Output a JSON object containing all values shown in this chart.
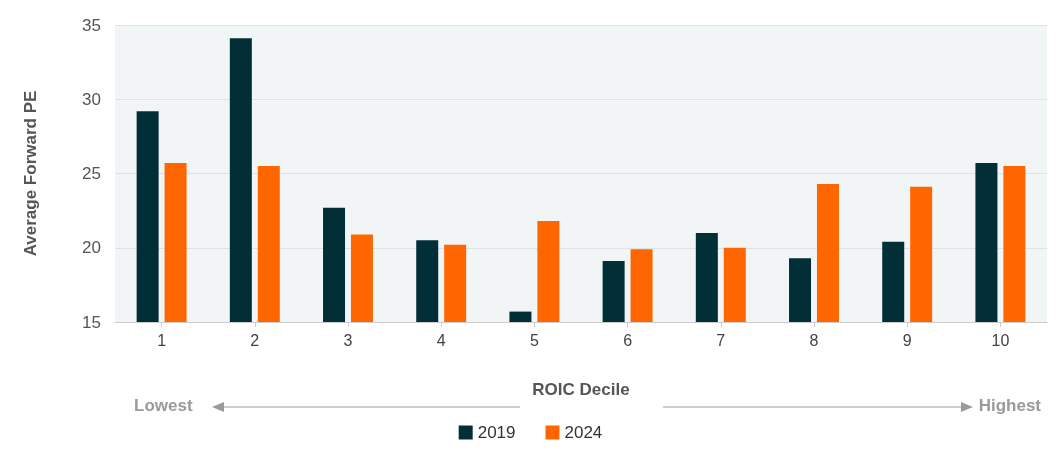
{
  "chart_data": {
    "type": "bar",
    "xlabel": "ROIC Decile",
    "ylabel": "Average Forward PE",
    "categories": [
      "1",
      "2",
      "3",
      "4",
      "5",
      "6",
      "7",
      "8",
      "9",
      "10"
    ],
    "series": [
      {
        "name": "2019",
        "color": "#022f37",
        "values": [
          29.2,
          34.1,
          22.7,
          20.5,
          15.7,
          19.1,
          21.0,
          19.3,
          20.4,
          25.7
        ]
      },
      {
        "name": "2024",
        "color": "#ff6600",
        "values": [
          25.7,
          25.5,
          20.9,
          20.2,
          21.8,
          19.9,
          20.0,
          24.3,
          24.1,
          25.5
        ]
      }
    ],
    "ylim": [
      15,
      35
    ],
    "yticks": [
      15,
      20,
      25,
      30,
      35
    ],
    "grid": "y",
    "legend": "bottom",
    "annotations": [
      "Lowest",
      "Highest"
    ]
  }
}
